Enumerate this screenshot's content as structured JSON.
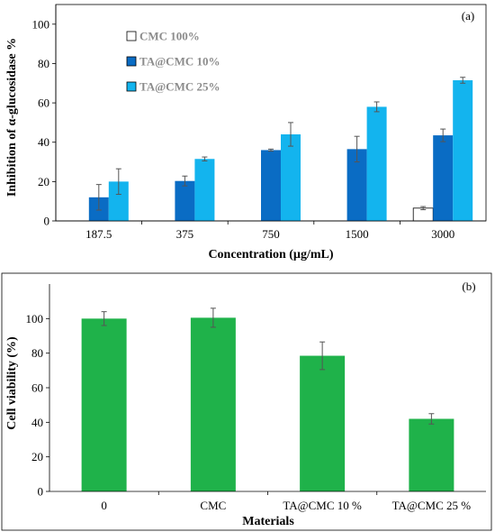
{
  "chart_data": [
    {
      "type": "bar",
      "panel_label": "(a)",
      "xlabel": "Concentration (µg/mL)",
      "ylabel": "Inhibition of α-glucosidase %",
      "categories": [
        "187.5",
        "375",
        "750",
        "1500",
        "3000"
      ],
      "ylim": [
        0,
        110
      ],
      "yticks": [
        0,
        20,
        40,
        60,
        80,
        100
      ],
      "grid": false,
      "legend_position": "top-left",
      "series": [
        {
          "name": "CMC 100%",
          "color": "#ffffff",
          "values": [
            null,
            null,
            null,
            null,
            6.5
          ],
          "errors": [
            null,
            null,
            null,
            null,
            0.8
          ]
        },
        {
          "name": "TA@CMC 10%",
          "color": "#0a6cc4",
          "values": [
            12,
            20.3,
            36,
            36.5,
            43.5
          ],
          "errors": [
            6.5,
            2.5,
            0.5,
            6.5,
            3.2
          ]
        },
        {
          "name": "TA@CMC 25%",
          "color": "#13b4ee",
          "values": [
            20,
            31.5,
            44,
            58,
            71.5
          ],
          "errors": [
            6.5,
            1.0,
            6.0,
            2.5,
            1.5
          ]
        }
      ]
    },
    {
      "type": "bar",
      "panel_label": "(b)",
      "xlabel": "Materials",
      "ylabel": "Cell viability (%)",
      "categories": [
        "0",
        "CMC",
        "TA@CMC 10 %",
        "TA@CMC 25 %"
      ],
      "ylim": [
        0,
        120
      ],
      "yticks": [
        0,
        20,
        40,
        60,
        80,
        100
      ],
      "grid": false,
      "series": [
        {
          "color": "#1fb24a",
          "values": [
            100,
            100.5,
            78.5,
            42
          ],
          "errors": [
            4,
            5.5,
            8,
            3
          ]
        }
      ]
    }
  ]
}
